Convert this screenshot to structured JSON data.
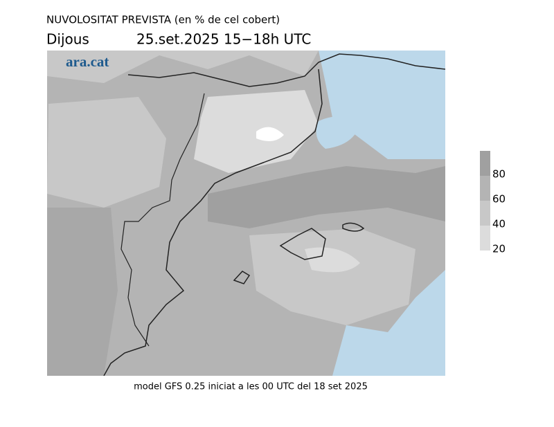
{
  "header": {
    "title": "NUVOLOSITAT PREVISTA (en % de cel cobert)",
    "day": "Dijous",
    "date": "25.set.2025 15−18h UTC"
  },
  "logo": "ara.cat",
  "legend": {
    "lim": [
      20,
      100
    ],
    "ticks": [
      20,
      40,
      60,
      80
    ],
    "colors": [
      "#dcdcdc",
      "#c8c8c8",
      "#b4b4b4",
      "#a0a0a0"
    ]
  },
  "footer": "model GFS 0.25 iniciat a les 00 UTC del 18 set 2025"
}
